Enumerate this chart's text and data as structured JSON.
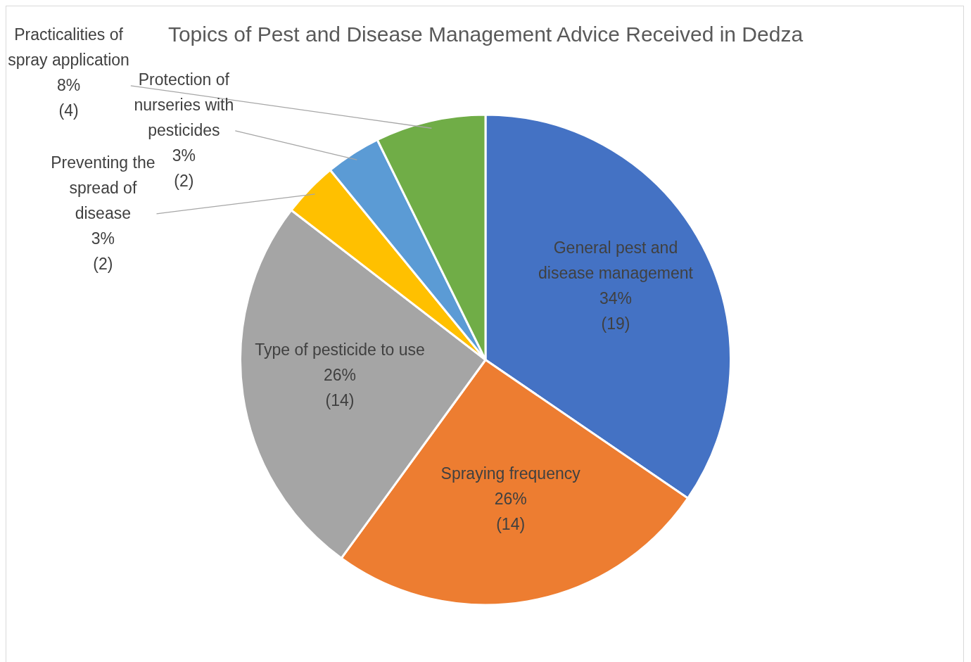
{
  "chart_data": {
    "type": "pie",
    "title": "Topics of Pest and Disease Management Advice Received in Dedza",
    "categories": [
      "General pest and disease management",
      "Spraying frequency",
      "Type of pesticide to use",
      "Preventing the spread of disease",
      "Protection of nurseries with pesticides",
      "Practicalities of spray application"
    ],
    "values": [
      19,
      14,
      14,
      2,
      2,
      4
    ],
    "colors": [
      "#4472c4",
      "#ed7d31",
      "#a5a5a5",
      "#ffc000",
      "#5b9bd5",
      "#70ad47"
    ],
    "value_labels": [
      "34%\n(19)",
      "26%\n(14)",
      "26%\n(14)",
      "3%\n(2)",
      "3%\n(2)",
      "8%\n(4)"
    ],
    "legend": false
  }
}
